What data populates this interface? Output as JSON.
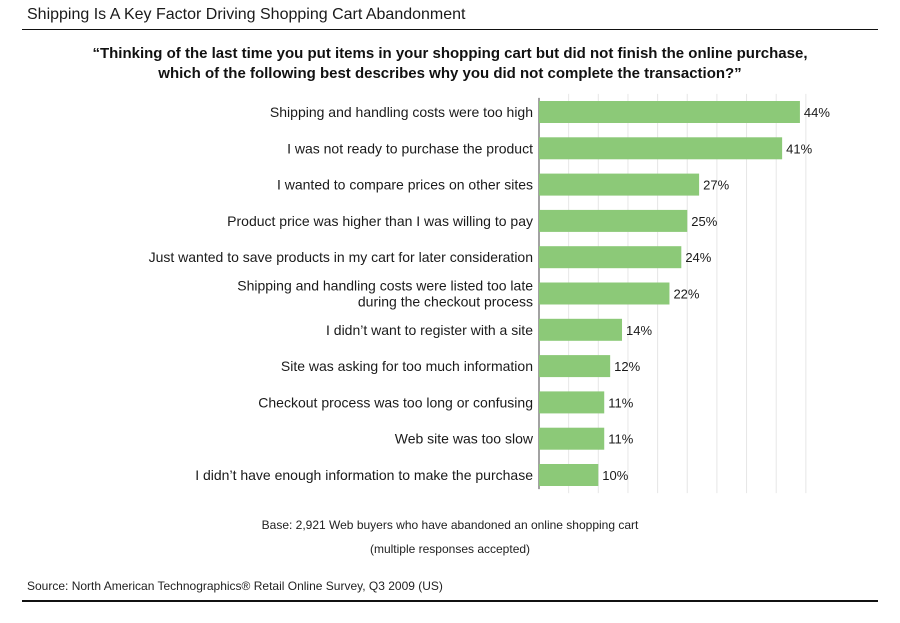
{
  "header": {
    "title": "Shipping Is A Key Factor Driving Shopping Cart Abandonment"
  },
  "question": {
    "line1": "“Thinking of the last time you put items in your shopping cart but did not finish the online purchase,",
    "line2": "which of the following best describes why you did not complete the transaction?”"
  },
  "colors": {
    "bar": "#8cc978",
    "grid": "#e6e6e6"
  },
  "chart_data": {
    "type": "bar",
    "orientation": "horizontal",
    "categories": [
      [
        "Shipping and handling costs were too high"
      ],
      [
        "I was not ready to purchase the product"
      ],
      [
        "I wanted to compare prices on other sites"
      ],
      [
        "Product price was higher than I was willing to pay"
      ],
      [
        "Just wanted to save products in my cart for later consideration"
      ],
      [
        "Shipping and handling costs were listed too late",
        "during the checkout process"
      ],
      [
        "I didn’t want to register with a site"
      ],
      [
        "Site was asking for too much information"
      ],
      [
        "Checkout process was too long or confusing"
      ],
      [
        "Web site was too slow"
      ],
      [
        "I didn’t have enough information to make the purchase"
      ]
    ],
    "values": [
      44,
      41,
      27,
      25,
      24,
      22,
      14,
      12,
      11,
      11,
      10
    ],
    "value_labels": [
      "44%",
      "41%",
      "27%",
      "25%",
      "24%",
      "22%",
      "14%",
      "12%",
      "11%",
      "11%",
      "10%"
    ],
    "unit": "%",
    "xlim": [
      0,
      44
    ],
    "grid": true,
    "legend": "none"
  },
  "footer": {
    "base_line1": "Base: 2,921 Web buyers who have abandoned an online shopping cart",
    "base_line2": "(multiple responses accepted)",
    "source": "Source: North American Technographics® Retail Online Survey, Q3 2009 (US)"
  }
}
